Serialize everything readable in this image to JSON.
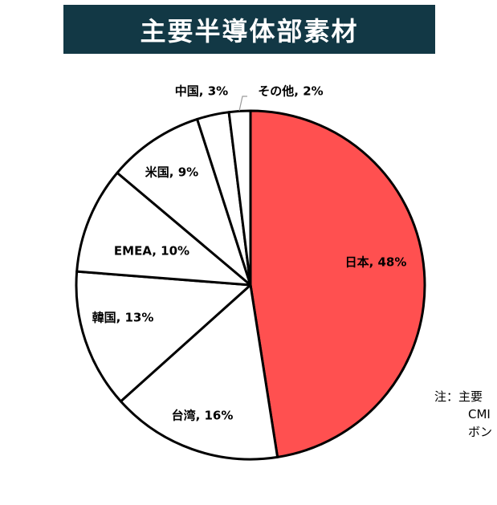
{
  "chart_data": {
    "type": "pie",
    "title": "主要半導体部素材",
    "start_angle_deg": 0,
    "direction": "clockwise",
    "slices": [
      {
        "label": "日本",
        "value": 48,
        "display": "日本, 48%",
        "color": "#ff5050"
      },
      {
        "label": "台湾",
        "value": 16,
        "display": "台湾, 16%",
        "color": "#ffffff"
      },
      {
        "label": "韓国",
        "value": 13,
        "display": "韓国, 13%",
        "color": "#ffffff"
      },
      {
        "label": "EMEA",
        "value": 10,
        "display": "EMEA, 10%",
        "color": "#ffffff"
      },
      {
        "label": "米国",
        "value": 9,
        "display": "米国, 9%",
        "color": "#ffffff"
      },
      {
        "label": "中国",
        "value": 3,
        "display": "中国, 3%",
        "color": "#ffffff"
      },
      {
        "label": "その他",
        "value": 2,
        "display": "その他, 2%",
        "color": "#ffffff"
      }
    ]
  },
  "note": {
    "line1": "注：主要",
    "line2": "CMI",
    "line3": "ボン"
  }
}
